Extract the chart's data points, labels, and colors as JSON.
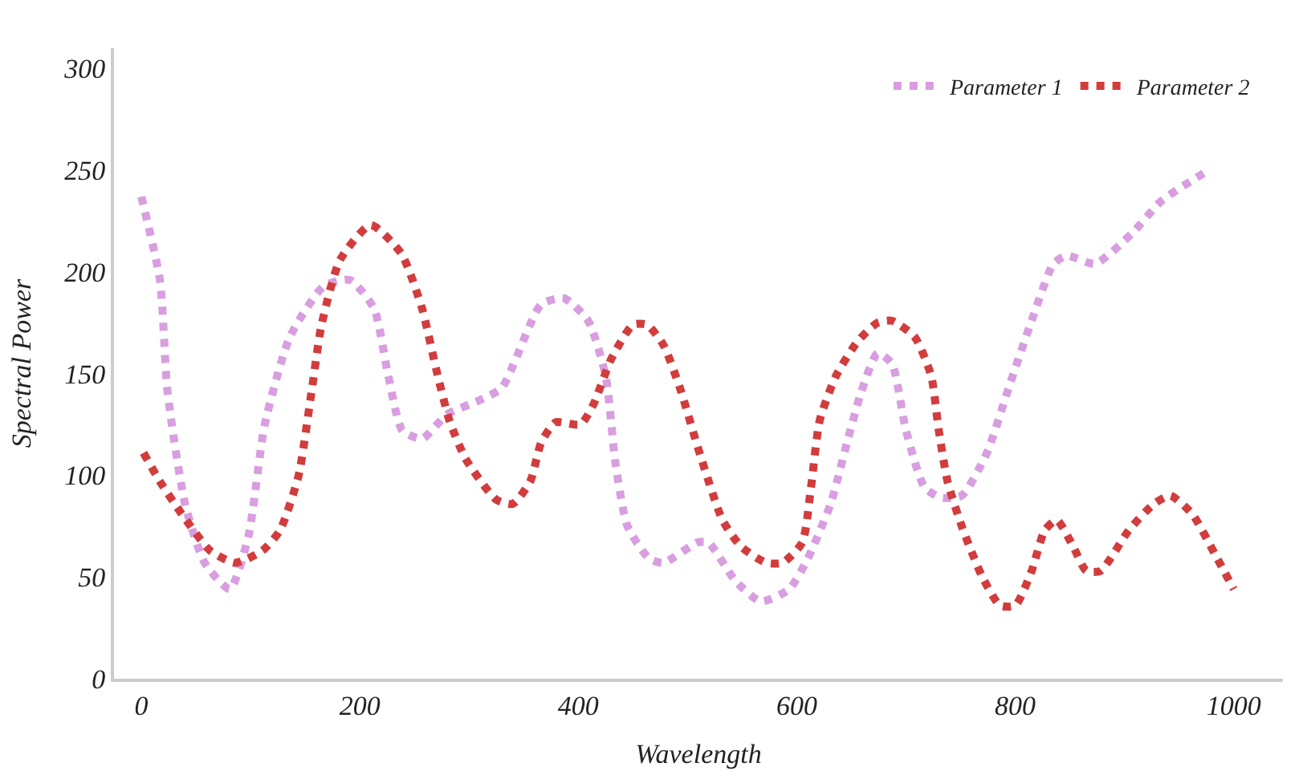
{
  "chart_data": {
    "type": "line",
    "xlabel": "Wavelength",
    "ylabel": "Spectral Power",
    "xlim": [
      -25,
      1045
    ],
    "ylim": [
      0,
      310
    ],
    "xticks": [
      0,
      200,
      400,
      600,
      800,
      1000
    ],
    "yticks": [
      0,
      50,
      100,
      150,
      200,
      250,
      300
    ],
    "legend": "top right",
    "line_style": "dotted",
    "marker": "none",
    "series": [
      {
        "name": "Parameter 1",
        "color": "#d89ee0",
        "x": [
          0,
          17,
          24,
          40,
          58,
          81,
          98,
          113,
          136,
          167,
          191,
          213,
          226,
          239,
          257,
          280,
          310,
          330,
          366,
          387,
          409,
          425,
          434,
          445,
          465,
          478,
          509,
          519,
          544,
          567,
          593,
          610,
          631,
          646,
          659,
          674,
          687,
          700,
          717,
          732,
          751,
          774,
          794,
          815,
          835,
          847,
          873,
          907,
          934,
          977
        ],
        "values": [
          237,
          196,
          141,
          86,
          57,
          44,
          70,
          125,
          168,
          193,
          196,
          182,
          149,
          122,
          118,
          130,
          137,
          143,
          184,
          187,
          176,
          149,
          106,
          75,
          59,
          57,
          67,
          67,
          48,
          38,
          44,
          59,
          86,
          116,
          141,
          160,
          155,
          122,
          94,
          89,
          90,
          111,
          143,
          176,
          204,
          208,
          204,
          219,
          235,
          250
        ]
      },
      {
        "name": "Parameter 2",
        "color": "#d23c3c",
        "x": [
          2,
          17,
          37,
          63,
          86,
          111,
          127,
          144,
          155,
          165,
          182,
          210,
          238,
          257,
          270,
          282,
          297,
          325,
          340,
          356,
          366,
          379,
          402,
          414,
          430,
          450,
          463,
          478,
          493,
          511,
          532,
          549,
          572,
          587,
          605,
          613,
          621,
          636,
          656,
          674,
          687,
          708,
          723,
          730,
          738,
          751,
          769,
          786,
          800,
          815,
          827,
          838,
          853,
          865,
          878,
          904,
          927,
          942,
          962,
          983,
          1000
        ],
        "values": [
          111,
          97,
          81,
          63,
          57,
          63,
          73,
          100,
          138,
          174,
          206,
          223,
          209,
          182,
          152,
          127,
          108,
          88,
          86,
          97,
          116,
          126,
          125,
          135,
          157,
          174,
          174,
          164,
          143,
          111,
          78,
          65,
          57,
          57,
          67,
          94,
          127,
          149,
          166,
          175,
          176,
          168,
          149,
          122,
          97,
          75,
          51,
          36,
          36,
          53,
          73,
          78,
          65,
          53,
          53,
          73,
          86,
          90,
          81,
          61,
          44
        ]
      }
    ]
  }
}
